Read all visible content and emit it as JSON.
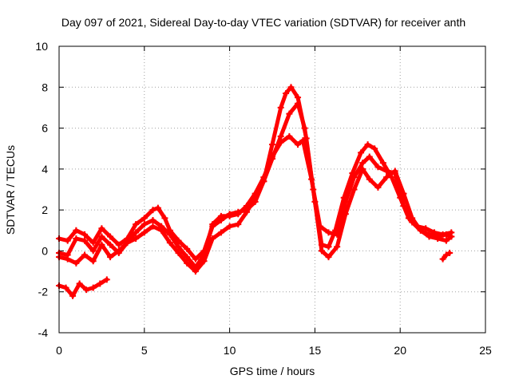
{
  "chart_data": {
    "type": "scatter",
    "title": "Day 097 of 2021, Sidereal Day-to-day VTEC variation (SDTVAR) for receiver anth",
    "xlabel": "GPS time / hours",
    "ylabel": "SDTVAR / TECUs",
    "xlim": [
      0,
      25
    ],
    "ylim": [
      -4,
      10
    ],
    "xticks": [
      0,
      5,
      10,
      15,
      20,
      25
    ],
    "yticks": [
      -4,
      -2,
      0,
      2,
      4,
      6,
      8,
      10
    ],
    "x_tick_labels": [
      "0",
      "5",
      "10",
      "15",
      "20",
      "25"
    ],
    "y_tick_labels": [
      "-4",
      "-2",
      "0",
      "2",
      "4",
      "6",
      "8",
      "10"
    ],
    "grid": true,
    "marker": "plus",
    "color": "#ff0000",
    "series": [
      {
        "name": "track-1",
        "points": [
          [
            0,
            0.6
          ],
          [
            0.5,
            0.5
          ],
          [
            1,
            1.0
          ],
          [
            1.5,
            0.8
          ],
          [
            2,
            0.4
          ],
          [
            2.5,
            1.1
          ],
          [
            3,
            0.7
          ],
          [
            3.5,
            0.3
          ],
          [
            4,
            0.6
          ],
          [
            4.5,
            1.3
          ],
          [
            5,
            1.6
          ],
          [
            5.5,
            2.0
          ],
          [
            5.8,
            2.1
          ],
          [
            6.2,
            1.6
          ],
          [
            6.5,
            1.0
          ],
          [
            7,
            0.5
          ],
          [
            7.5,
            0.1
          ],
          [
            8,
            -0.4
          ],
          [
            8.5,
            0.0
          ],
          [
            9,
            1.2
          ],
          [
            9.5,
            1.5
          ],
          [
            10,
            1.8
          ],
          [
            10.5,
            1.9
          ],
          [
            11,
            2.0
          ],
          [
            11.5,
            2.4
          ],
          [
            12,
            3.4
          ],
          [
            12.5,
            5.2
          ],
          [
            13,
            7.0
          ],
          [
            13.3,
            7.7
          ],
          [
            13.6,
            8.0
          ],
          [
            14,
            7.5
          ],
          [
            14.5,
            5.5
          ],
          [
            15,
            2.4
          ],
          [
            15.4,
            0.3
          ],
          [
            15.8,
            0.2
          ],
          [
            16.2,
            1.0
          ],
          [
            16.7,
            2.6
          ],
          [
            17.2,
            3.8
          ],
          [
            17.7,
            4.8
          ],
          [
            18.1,
            5.2
          ],
          [
            18.5,
            5.0
          ],
          [
            19,
            4.3
          ],
          [
            19.5,
            3.6
          ],
          [
            20,
            2.6
          ],
          [
            20.5,
            1.6
          ],
          [
            21,
            1.2
          ],
          [
            21.5,
            1.1
          ],
          [
            22,
            0.9
          ],
          [
            22.5,
            0.8
          ],
          [
            23,
            0.9
          ]
        ]
      },
      {
        "name": "track-2",
        "points": [
          [
            0,
            -0.1
          ],
          [
            0.5,
            -0.2
          ],
          [
            1,
            0.6
          ],
          [
            1.5,
            0.5
          ],
          [
            2,
            0.0
          ],
          [
            2.5,
            0.7
          ],
          [
            3,
            0.3
          ],
          [
            3.5,
            -0.1
          ],
          [
            4,
            0.4
          ],
          [
            4.5,
            0.9
          ],
          [
            5,
            1.3
          ],
          [
            5.5,
            1.5
          ],
          [
            6,
            1.2
          ],
          [
            6.5,
            0.8
          ],
          [
            7,
            0.2
          ],
          [
            7.5,
            -0.3
          ],
          [
            8,
            -0.8
          ],
          [
            8.5,
            -0.2
          ],
          [
            9,
            1.3
          ],
          [
            9.5,
            1.7
          ],
          [
            10,
            1.7
          ],
          [
            10.5,
            1.8
          ],
          [
            11,
            2.2
          ],
          [
            11.5,
            2.8
          ],
          [
            12,
            3.6
          ],
          [
            12.5,
            4.6
          ],
          [
            13,
            5.3
          ],
          [
            13.5,
            5.6
          ],
          [
            14,
            5.2
          ],
          [
            14.3,
            5.4
          ],
          [
            14.8,
            3.5
          ],
          [
            15.3,
            1.2
          ],
          [
            15.8,
            0.9
          ],
          [
            16.3,
            0.8
          ],
          [
            16.8,
            2.4
          ],
          [
            17.3,
            3.6
          ],
          [
            17.8,
            4.3
          ],
          [
            18.2,
            4.6
          ],
          [
            18.7,
            4.1
          ],
          [
            19.2,
            3.9
          ],
          [
            19.7,
            3.8
          ],
          [
            20.2,
            2.2
          ],
          [
            20.7,
            1.4
          ],
          [
            21.2,
            1.0
          ],
          [
            21.7,
            0.8
          ],
          [
            22.2,
            0.7
          ],
          [
            22.7,
            0.8
          ],
          [
            23,
            0.7
          ]
        ]
      },
      {
        "name": "track-3",
        "points": [
          [
            0,
            -0.3
          ],
          [
            0.5,
            -0.4
          ],
          [
            1,
            -0.6
          ],
          [
            1.5,
            -0.2
          ],
          [
            2,
            -0.5
          ],
          [
            2.5,
            0.3
          ],
          [
            3,
            -0.3
          ],
          [
            3.5,
            0.0
          ],
          [
            4,
            0.4
          ],
          [
            4.5,
            0.6
          ],
          [
            5,
            0.9
          ],
          [
            5.5,
            1.2
          ],
          [
            6,
            1.0
          ],
          [
            6.5,
            0.4
          ],
          [
            7,
            -0.1
          ],
          [
            7.5,
            -0.6
          ],
          [
            8,
            -1.0
          ],
          [
            8.5,
            -0.5
          ],
          [
            9,
            0.6
          ],
          [
            9.5,
            0.9
          ],
          [
            10,
            1.2
          ],
          [
            10.5,
            1.3
          ],
          [
            11,
            1.9
          ],
          [
            11.5,
            2.6
          ],
          [
            12,
            3.4
          ],
          [
            12.5,
            4.5
          ],
          [
            13,
            5.6
          ],
          [
            13.5,
            6.7
          ],
          [
            14,
            7.2
          ],
          [
            14.4,
            6.0
          ],
          [
            14.9,
            3.0
          ],
          [
            15.4,
            0.0
          ],
          [
            15.8,
            -0.3
          ],
          [
            16.3,
            0.2
          ],
          [
            16.8,
            1.8
          ],
          [
            17.3,
            3.0
          ],
          [
            17.8,
            4.0
          ],
          [
            18.2,
            3.5
          ],
          [
            18.7,
            3.1
          ],
          [
            19.2,
            3.6
          ],
          [
            19.7,
            3.9
          ],
          [
            20.2,
            2.8
          ],
          [
            20.7,
            1.6
          ],
          [
            21.2,
            1.0
          ],
          [
            21.7,
            0.7
          ],
          [
            22.2,
            0.6
          ],
          [
            22.7,
            0.5
          ],
          [
            23,
            0.7
          ]
        ]
      },
      {
        "name": "track-4",
        "points": [
          [
            0,
            -1.7
          ],
          [
            0.4,
            -1.8
          ],
          [
            0.8,
            -2.2
          ],
          [
            1.2,
            -1.6
          ],
          [
            1.6,
            -1.9
          ],
          [
            2,
            -1.8
          ],
          [
            2.4,
            -1.6
          ],
          [
            2.8,
            -1.4
          ]
        ]
      },
      {
        "name": "track-5",
        "points": [
          [
            22.5,
            -0.4
          ],
          [
            22.7,
            -0.2
          ],
          [
            22.9,
            -0.1
          ]
        ]
      }
    ]
  }
}
